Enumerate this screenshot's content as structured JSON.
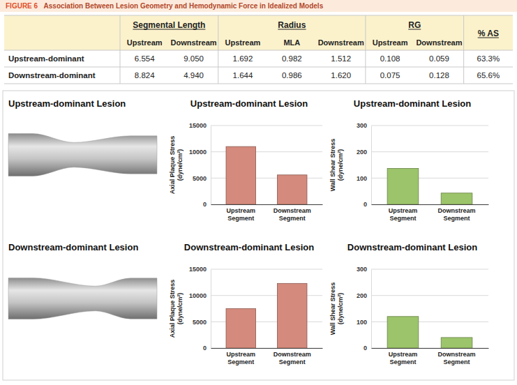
{
  "figure": {
    "label": "FIGURE 6",
    "title": "Association Between Lesion Geometry and Hemodynamic Force in Idealized Models"
  },
  "table": {
    "group_headers": [
      {
        "label": "Segmental Length",
        "columns": [
          "Upstream",
          "Downstream"
        ]
      },
      {
        "label": "Radius",
        "columns": [
          "Upstream",
          "MLA",
          "Downstream"
        ]
      },
      {
        "label": "RG",
        "columns": [
          "Upstream",
          "Downstream"
        ]
      },
      {
        "label": "% AS",
        "columns": []
      }
    ],
    "rows": [
      [
        "Upstream-dominant",
        "6.554",
        "9.050",
        "1.692",
        "0.982",
        "1.512",
        "0.108",
        "0.059",
        "63.3%"
      ],
      [
        "Downstream-dominant",
        "8.824",
        "4.940",
        "1.644",
        "0.986",
        "1.620",
        "0.075",
        "0.128",
        "65.6%"
      ]
    ]
  },
  "panel_titles": [
    "Upstream-dominant Lesion",
    "Downstream-dominant Lesion"
  ],
  "chart_data": [
    {
      "type": "bar",
      "title": "Upstream-dominant Lesion",
      "y_label": "Axial Plaque Stress (dyne/cm²)",
      "categories": [
        "Upstream Segment",
        "Downstream Segment"
      ],
      "values": [
        11000,
        5600
      ],
      "color": "#d48a7c",
      "ylim": [
        0,
        15000
      ],
      "yticks": [
        0,
        5000,
        10000,
        15000
      ],
      "grid": true
    },
    {
      "type": "bar",
      "title": "Upstream-dominant Lesion",
      "y_label": "Wall Shear Stress (dyne/cm²)",
      "categories": [
        "Upstream Segment",
        "Downstream Segment"
      ],
      "values": [
        137,
        43
      ],
      "color": "#9cc46a",
      "ylim": [
        0,
        300
      ],
      "yticks": [
        0,
        100,
        200,
        300
      ],
      "grid": true
    },
    {
      "type": "bar",
      "title": "Downstream-dominant Lesion",
      "y_label": "Axial Plaque Stress (dyne/cm²)",
      "categories": [
        "Upstream Segment",
        "Downstream Segment"
      ],
      "values": [
        7500,
        12300
      ],
      "color": "#d48a7c",
      "ylim": [
        0,
        15000
      ],
      "yticks": [
        0,
        5000,
        10000,
        15000
      ],
      "grid": true
    },
    {
      "type": "bar",
      "title": "Downstream-dominant Lesion",
      "y_label": "Wall Shear Stress (dyne/cm²)",
      "categories": [
        "Upstream Segment",
        "Downstream Segment"
      ],
      "values": [
        120,
        40
      ],
      "color": "#9cc46a",
      "ylim": [
        0,
        300
      ],
      "yticks": [
        0,
        100,
        200,
        300
      ],
      "grid": true
    }
  ]
}
